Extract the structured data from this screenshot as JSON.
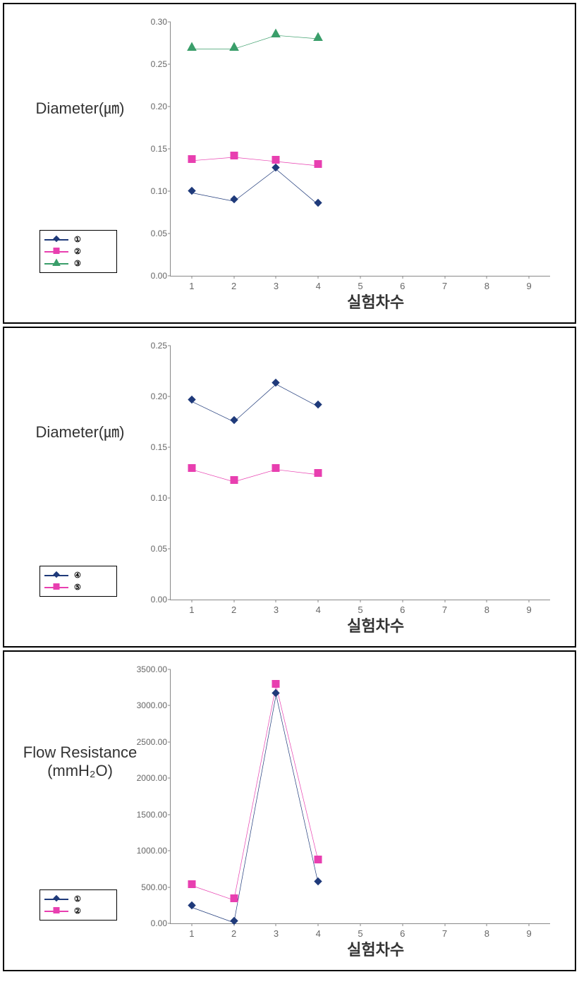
{
  "charts": [
    {
      "id": "chart1",
      "ylabel": "Diameter(㎛)",
      "xlabel": "실험차수",
      "ylim": [
        0.0,
        0.3
      ],
      "ytick_step": 0.05,
      "ytick_decimals": 2,
      "xlim": [
        0.5,
        9.5
      ],
      "xticks": [
        1,
        2,
        3,
        4,
        5,
        6,
        7,
        8,
        9
      ],
      "series": [
        {
          "name": "①",
          "color": "#1f3a7a",
          "marker": "diamond",
          "values": [
            0.098,
            0.088,
            0.126,
            0.084
          ]
        },
        {
          "name": "②",
          "color": "#e83fb0",
          "marker": "square",
          "values": [
            0.136,
            0.14,
            0.135,
            0.13
          ]
        },
        {
          "name": "③",
          "color": "#3a9e6a",
          "marker": "triangle",
          "values": [
            0.268,
            0.268,
            0.284,
            0.28
          ]
        }
      ],
      "marker_size": 8,
      "line_width": 2,
      "label_fontsize": 22,
      "tick_fontsize": 12,
      "background_color": "#ffffff",
      "axis_color": "#888888"
    },
    {
      "id": "chart2",
      "ylabel": "Diameter(㎛)",
      "xlabel": "실험차수",
      "ylim": [
        0.0,
        0.25
      ],
      "ytick_step": 0.05,
      "ytick_decimals": 2,
      "xlim": [
        0.5,
        9.5
      ],
      "xticks": [
        1,
        2,
        3,
        4,
        5,
        6,
        7,
        8,
        9
      ],
      "series": [
        {
          "name": "④",
          "color": "#1f3a7a",
          "marker": "diamond",
          "values": [
            0.195,
            0.175,
            0.212,
            0.19
          ]
        },
        {
          "name": "⑤",
          "color": "#e83fb0",
          "marker": "square",
          "values": [
            0.128,
            0.116,
            0.128,
            0.123
          ]
        }
      ],
      "marker_size": 8,
      "line_width": 2,
      "label_fontsize": 22,
      "tick_fontsize": 12,
      "background_color": "#ffffff",
      "axis_color": "#888888"
    },
    {
      "id": "chart3",
      "ylabel": "Flow Resistance (mmH₂O)",
      "xlabel": "실험차수",
      "ylim": [
        0.0,
        3500.0
      ],
      "ytick_step": 500.0,
      "ytick_decimals": 2,
      "xlim": [
        0.5,
        9.5
      ],
      "xticks": [
        1,
        2,
        3,
        4,
        5,
        6,
        7,
        8,
        9
      ],
      "series": [
        {
          "name": "①",
          "color": "#1f3a7a",
          "marker": "diamond",
          "values": [
            220,
            10,
            3150,
            550
          ]
        },
        {
          "name": "②",
          "color": "#e83fb0",
          "marker": "square",
          "values": [
            520,
            320,
            3280,
            860
          ]
        }
      ],
      "marker_size": 8,
      "line_width": 2,
      "label_fontsize": 22,
      "tick_fontsize": 12,
      "background_color": "#ffffff",
      "axis_color": "#888888"
    }
  ]
}
